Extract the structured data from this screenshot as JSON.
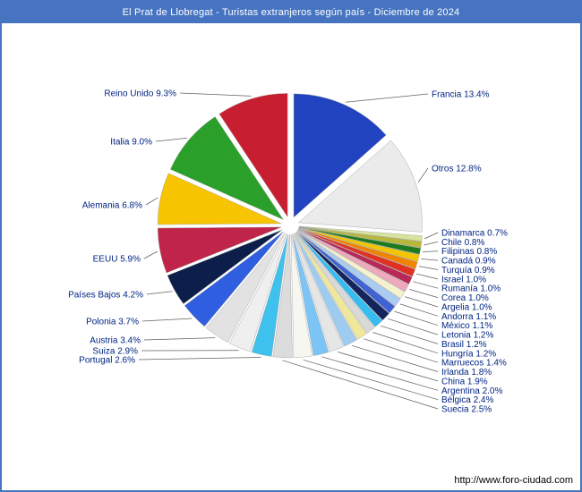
{
  "window": {
    "title": "El Prat de Llobregat - Turistas extranjeros según país - Diciembre de 2024"
  },
  "footer": {
    "url": "http://www.foro-ciudad.com"
  },
  "theme": {
    "frame_border": "#4674c1",
    "title_bg": "#4674c1",
    "title_text": "#ffffff",
    "label_text": "#002483",
    "leader_line": "#606060",
    "background": "#ffffff"
  },
  "chart_data": {
    "type": "pie",
    "title": "El Prat de Llobregat - Turistas extranjeros según país - Diciembre de 2024",
    "unit": "%",
    "order": "clockwise-from-top",
    "label_format": "{label} {value}%",
    "slices": [
      {
        "label": "Francia",
        "value": 13.4,
        "color": "#2143c0"
      },
      {
        "label": "Otros",
        "value": 12.8,
        "color": "#ebebeb"
      },
      {
        "label": "Dinamarca",
        "value": 0.7,
        "color": "#d8e49a"
      },
      {
        "label": "Chile",
        "value": 0.8,
        "color": "#b8b83a"
      },
      {
        "label": "Filipinas",
        "value": 0.8,
        "color": "#1d7a1d"
      },
      {
        "label": "Canadá",
        "value": 0.9,
        "color": "#f2c500"
      },
      {
        "label": "Turquía",
        "value": 0.9,
        "color": "#f08300"
      },
      {
        "label": "Israel",
        "value": 1.0,
        "color": "#e03222"
      },
      {
        "label": "Rumanía",
        "value": 1.0,
        "color": "#b82858"
      },
      {
        "label": "Corea",
        "value": 1.0,
        "color": "#f0a8bc"
      },
      {
        "label": "Argelia",
        "value": 1.0,
        "color": "#f6f2cd"
      },
      {
        "label": "Andorra",
        "value": 1.1,
        "color": "#a9cdf2"
      },
      {
        "label": "México",
        "value": 1.1,
        "color": "#3f63d2"
      },
      {
        "label": "Letonia",
        "value": 1.2,
        "color": "#13255c"
      },
      {
        "label": "Brasil",
        "value": 1.2,
        "color": "#35bdf0"
      },
      {
        "label": "Hungría",
        "value": 1.2,
        "color": "#d9d9d9"
      },
      {
        "label": "Marruecos",
        "value": 1.4,
        "color": "#efe79b"
      },
      {
        "label": "Irlanda",
        "value": 1.8,
        "color": "#9ecbf0"
      },
      {
        "label": "China",
        "value": 1.9,
        "color": "#e6e6e6"
      },
      {
        "label": "Argentina",
        "value": 2.0,
        "color": "#7cc4f5"
      },
      {
        "label": "Bélgica",
        "value": 2.4,
        "color": "#f7f7f2"
      },
      {
        "label": "Suecia",
        "value": 2.5,
        "color": "#dcdcdc"
      },
      {
        "label": "Portugal",
        "value": 2.6,
        "color": "#3fc1ee"
      },
      {
        "label": "Suiza",
        "value": 2.9,
        "color": "#efefef"
      },
      {
        "label": "Austria",
        "value": 3.4,
        "color": "#e2e2e2"
      },
      {
        "label": "Polonia",
        "value": 3.7,
        "color": "#2f5fe0"
      },
      {
        "label": "Países Bajos",
        "value": 4.2,
        "color": "#0e1e4a"
      },
      {
        "label": "EEUU",
        "value": 5.9,
        "color": "#c02448"
      },
      {
        "label": "Alemania",
        "value": 6.8,
        "color": "#f6c400"
      },
      {
        "label": "Italia",
        "value": 9.0,
        "color": "#2aa02a"
      },
      {
        "label": "Reino Unido",
        "value": 9.3,
        "color": "#c81f30"
      }
    ]
  }
}
